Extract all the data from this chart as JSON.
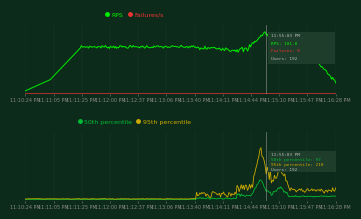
{
  "bg_color": "#0d2b1a",
  "panel_bg": "#0d2b1a",
  "grid_color": "#1a4030",
  "top_legend": [
    "RPS",
    "Failures/s"
  ],
  "top_legend_colors": [
    "#00ee00",
    "#ee3333"
  ],
  "bottom_legend": [
    "50th percentile",
    "95th percentile"
  ],
  "bottom_legend_colors": [
    "#00bb33",
    "#ccaa00"
  ],
  "annotation_color": "#cccccc",
  "annotation_bg": "#1e3d2a",
  "vline_color": "#aaaaaa",
  "xlabel_color": "#888888",
  "tick_fontsize": 3.5,
  "legend_fontsize": 4.5,
  "n_points": 300,
  "x_tick_labels": [
    "11:10:24 PM",
    "11:11:05 PM",
    "11:11:25 PM",
    "11:12:00 PM",
    "11:12:37 PM",
    "11:13:06 PM",
    "11:13:40 PM",
    "11:14:11 PM",
    "11:14:44 PM",
    "11:15:10 PM",
    "11:15:47 PM",
    "11:16:28 PM"
  ],
  "annotation_top": [
    "11:55:03 PM",
    "RPS: 101.8",
    "Failures: 0",
    "Users: 192"
  ],
  "annotation_top_colors": [
    "#bbbbbb",
    "#00ee00",
    "#ee3333",
    "#bbbbbb"
  ],
  "annotation_bot": [
    "11:55:03 PM",
    "50th percentile: 97",
    "95th percentile: 210",
    "Users: 192"
  ],
  "annotation_bot_colors": [
    "#bbbbbb",
    "#00bb33",
    "#ccaa00",
    "#bbbbbb"
  ]
}
